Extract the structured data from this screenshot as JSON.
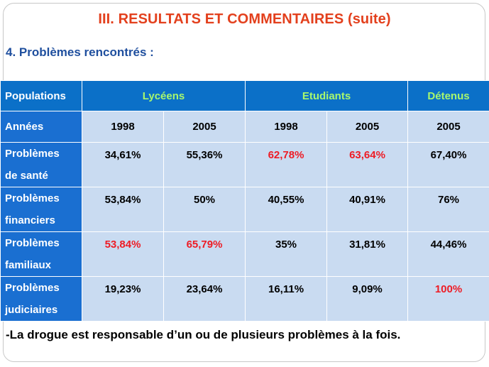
{
  "title": "III. RESULTATS ET COMMENTAIRES (suite)",
  "subtitle": "4. Problèmes rencontrés :",
  "table": {
    "header_label": "Populations",
    "groups": [
      "Lycéens",
      "Etudiants",
      "Détenus"
    ],
    "years_label": "Années",
    "years": [
      "1998",
      "2005",
      "1998",
      "2005",
      "2005"
    ],
    "rows": [
      {
        "label_line1": "Problèmes",
        "label_line2": "de santé",
        "values": [
          "34,61%",
          "55,36%",
          "62,78%",
          "63,64%",
          "67,40%"
        ]
      },
      {
        "label_line1": "Problèmes",
        "label_line2": "financiers",
        "values": [
          "53,84%",
          "50%",
          "40,55%",
          "40,91%",
          "76%"
        ]
      },
      {
        "label_line1": "Problèmes",
        "label_line2": "familiaux",
        "values": [
          "53,84%",
          "65,79%",
          "35%",
          "31,81%",
          "44,46%"
        ]
      },
      {
        "label_line1": "Problèmes",
        "label_line2": "judiciaires",
        "values": [
          "19,23%",
          "23,64%",
          "16,11%",
          "9,09%",
          "100%"
        ]
      }
    ],
    "highlight_color": "#ee1c25",
    "highlighted_cells": [
      [
        0,
        2
      ],
      [
        0,
        3
      ],
      [
        2,
        0
      ],
      [
        2,
        1
      ],
      [
        3,
        4
      ]
    ]
  },
  "footnote": "-La drogue est responsable d’un ou de plusieurs problèmes à la fois."
}
